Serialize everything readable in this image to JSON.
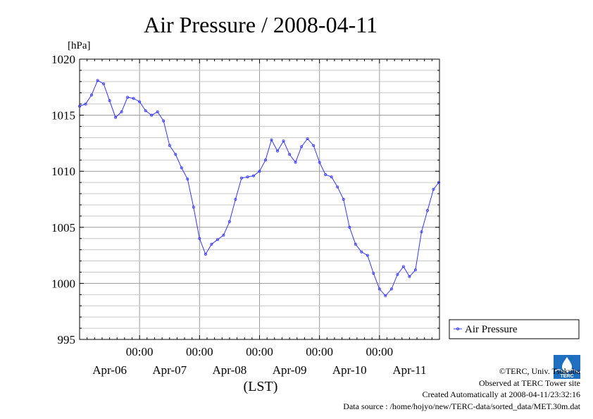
{
  "chart_data": {
    "type": "line",
    "title": "Air Pressure / 2008-04-11",
    "ylabel": "[hPa]",
    "xlabel": "(LST)",
    "ylim": [
      995,
      1020
    ],
    "yticks": [
      995,
      1000,
      1005,
      1010,
      1015,
      1020
    ],
    "ytick_labels": [
      "995",
      "1000",
      "1005",
      "1010",
      "1015",
      "1020"
    ],
    "xlim": [
      0,
      6
    ],
    "xticks": [
      1,
      2,
      3,
      4,
      5
    ],
    "xtick_time_labels": [
      "00:00",
      "00:00",
      "00:00",
      "00:00",
      "00:00"
    ],
    "xtick_date_labels": [
      "Apr-06",
      "Apr-07",
      "Apr-08",
      "Apr-09",
      "Apr-10",
      "Apr-11"
    ],
    "grid": true,
    "legend_position": "right",
    "series": [
      {
        "name": "Air Pressure",
        "color": "#3333ff",
        "x": [
          0.0,
          0.1,
          0.2,
          0.3,
          0.4,
          0.5,
          0.6,
          0.7,
          0.8,
          0.9,
          1.0,
          1.1,
          1.2,
          1.3,
          1.4,
          1.5,
          1.6,
          1.7,
          1.8,
          1.9,
          2.0,
          2.1,
          2.2,
          2.3,
          2.4,
          2.5,
          2.6,
          2.7,
          2.8,
          2.9,
          3.0,
          3.1,
          3.2,
          3.3,
          3.4,
          3.5,
          3.6,
          3.7,
          3.8,
          3.9,
          4.0,
          4.1,
          4.2,
          4.3,
          4.4,
          4.5,
          4.6,
          4.7,
          4.8,
          4.9,
          5.0,
          5.1,
          5.2,
          5.3,
          5.4,
          5.5,
          5.6,
          5.7,
          5.8,
          5.9,
          5.99
        ],
        "values": [
          1015.8,
          1016.0,
          1016.8,
          1018.1,
          1017.8,
          1016.3,
          1014.8,
          1015.3,
          1016.6,
          1016.5,
          1016.2,
          1015.4,
          1015.0,
          1015.3,
          1014.5,
          1012.3,
          1011.5,
          1010.3,
          1009.3,
          1006.8,
          1004.0,
          1002.6,
          1003.5,
          1003.9,
          1004.3,
          1005.5,
          1007.5,
          1009.4,
          1009.5,
          1009.6,
          1010.0,
          1011.0,
          1012.8,
          1011.8,
          1012.7,
          1011.5,
          1010.8,
          1012.2,
          1012.9,
          1012.3,
          1010.8,
          1009.7,
          1009.5,
          1008.6,
          1007.5,
          1005.0,
          1003.5,
          1002.8,
          1002.5,
          1000.9,
          999.5,
          998.9,
          999.5,
          1000.8,
          1001.5,
          1000.6,
          1001.2,
          1004.6,
          1006.5,
          1008.4,
          1009.0
        ]
      }
    ]
  },
  "credits": {
    "copyright": "©TERC, Univ. Tsukuba",
    "site": "Observed at TERC Tower site",
    "created": "Created Automatically at 2008-04-11/23:32:16",
    "source": "Data source : /home/hojyo/new/TERC-data/sorted_data/MET.30m.dat"
  },
  "logo": {
    "text": "TERC",
    "color": "#1f6fc0"
  }
}
